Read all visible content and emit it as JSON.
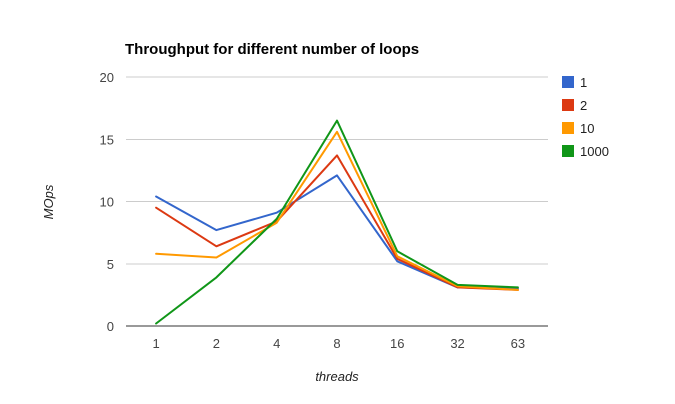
{
  "chart_data": {
    "type": "line",
    "title": "Throughput for different number of loops",
    "xlabel": "threads",
    "ylabel": "MOps",
    "categories": [
      "1",
      "2",
      "4",
      "8",
      "16",
      "32",
      "63"
    ],
    "ylim": [
      0,
      20
    ],
    "yticks": [
      0,
      5,
      10,
      15,
      20
    ],
    "grid": true,
    "legend_position": "right",
    "series": [
      {
        "name": "1",
        "color": "#3366cc",
        "values": [
          10.4,
          7.7,
          9.1,
          12.1,
          5.2,
          3.1,
          3.0
        ]
      },
      {
        "name": "2",
        "color": "#dc3912",
        "values": [
          9.5,
          6.4,
          8.4,
          13.7,
          5.4,
          3.1,
          2.9
        ]
      },
      {
        "name": "10",
        "color": "#ff9900",
        "values": [
          5.8,
          5.5,
          8.3,
          15.6,
          5.6,
          3.2,
          2.9
        ]
      },
      {
        "name": "1000",
        "color": "#109618",
        "values": [
          0.2,
          3.9,
          8.6,
          16.5,
          6.0,
          3.3,
          3.1
        ]
      }
    ]
  }
}
